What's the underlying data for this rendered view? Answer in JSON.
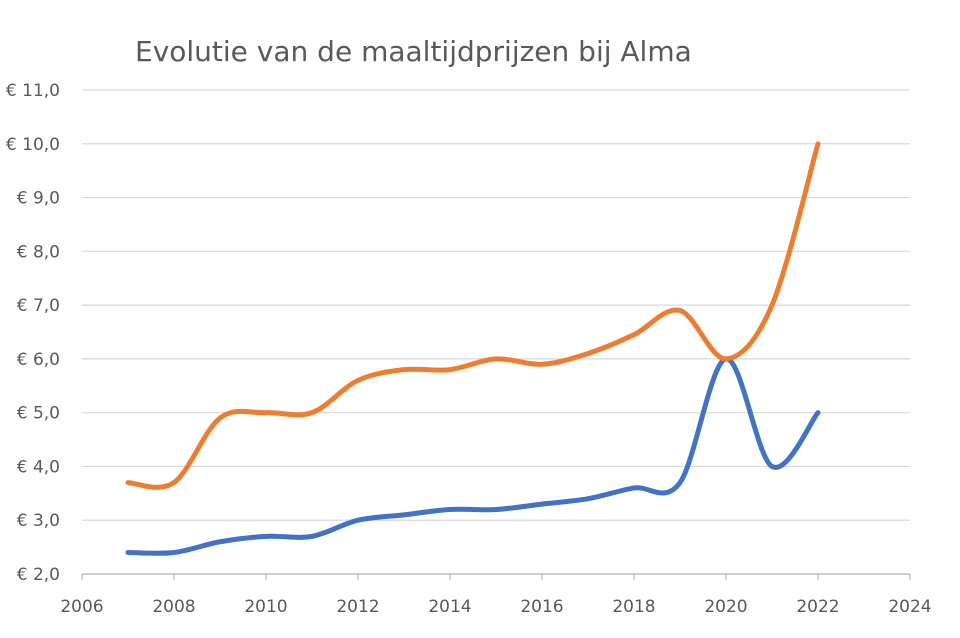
{
  "chart_data": {
    "type": "line",
    "title": "Evolutie van de maaltijdprijzen bij Alma",
    "xlabel": "",
    "ylabel": "",
    "xlim": [
      2006,
      2024
    ],
    "ylim": [
      2.0,
      11.0
    ],
    "x_ticks": [
      2006,
      2008,
      2010,
      2012,
      2014,
      2016,
      2018,
      2020,
      2022,
      2024
    ],
    "x_tick_labels": [
      "2006",
      "2008",
      "2010",
      "2012",
      "2014",
      "2016",
      "2018",
      "2020",
      "2022",
      "2024"
    ],
    "y_ticks": [
      2,
      3,
      4,
      5,
      6,
      7,
      8,
      9,
      10,
      11
    ],
    "y_tick_labels": [
      "€ 2,0",
      "€ 3,0",
      "€ 4,0",
      "€ 5,0",
      "€ 6,0",
      "€ 7,0",
      "€ 8,0",
      "€ 9,0",
      "€ 10,0",
      "€ 11,0"
    ],
    "grid": true,
    "legend": "none",
    "smooth": true,
    "x": [
      2007,
      2008,
      2009,
      2010,
      2011,
      2012,
      2013,
      2014,
      2015,
      2016,
      2017,
      2018,
      2019,
      2020,
      2021,
      2022
    ],
    "series": [
      {
        "color": "#4472c4",
        "values": [
          2.4,
          2.4,
          2.6,
          2.7,
          2.7,
          3.0,
          3.1,
          3.2,
          3.2,
          3.3,
          3.4,
          3.6,
          3.7,
          6.0,
          4.0,
          5.0
        ]
      },
      {
        "color": "#ed7d31",
        "values": [
          3.7,
          3.7,
          4.9,
          5.0,
          5.0,
          5.6,
          5.8,
          5.8,
          6.0,
          5.9,
          6.1,
          6.45,
          6.9,
          6.0,
          7.0,
          10.0
        ]
      }
    ]
  }
}
